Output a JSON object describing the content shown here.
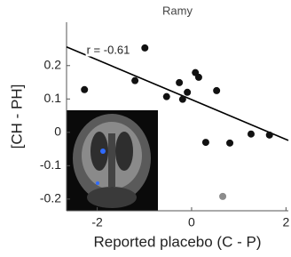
{
  "chart_data": {
    "type": "scatter",
    "title": "Ramy",
    "x_label": "Reported placebo (C - P)",
    "y_label": "[CH - PH]",
    "annotation": "r = -0.61",
    "xlim": [
      -2.65,
      2.05
    ],
    "ylim": [
      -0.235,
      0.33
    ],
    "xticks": [
      -2,
      0,
      2
    ],
    "yticks": [
      -0.2,
      -0.1,
      0,
      0.1,
      0.2
    ],
    "series": [
      {
        "color": "#111111",
        "x": [
          -2.27,
          -0.99,
          -1.2,
          -0.53,
          -0.26,
          -0.19,
          -0.09,
          0.08,
          0.15,
          0.53,
          0.3,
          0.81,
          1.26,
          1.65
        ],
        "values": [
          0.128,
          0.253,
          0.155,
          0.107,
          0.149,
          0.099,
          0.12,
          0.179,
          0.165,
          0.125,
          -0.03,
          -0.032,
          -0.005,
          -0.008
        ]
      },
      {
        "color": "#8c8c8c",
        "x": [
          0.66
        ],
        "values": [
          -0.192
        ]
      }
    ],
    "fit": {
      "color": "#000000",
      "x": [
        -2.65,
        2.05
      ],
      "values": [
        0.256,
        -0.024
      ]
    }
  }
}
